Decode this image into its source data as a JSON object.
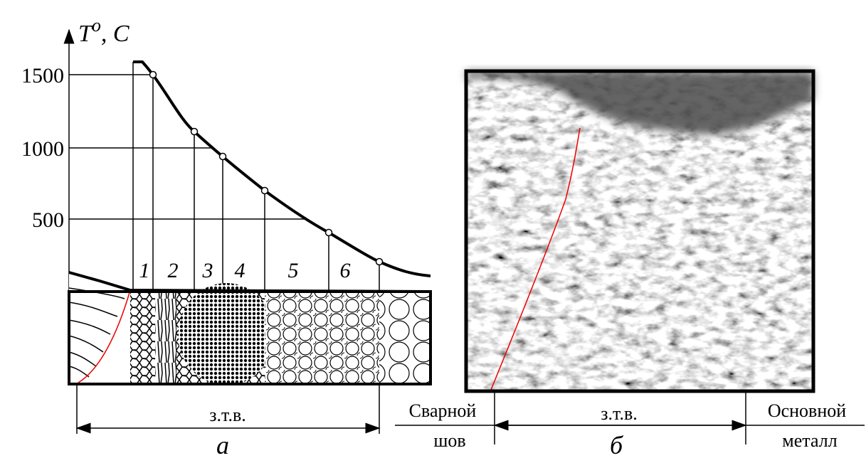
{
  "axis": {
    "symbol": "T",
    "degree": "o",
    "unit": ", C",
    "ticks": [
      "1500",
      "1000",
      "500"
    ]
  },
  "zones": [
    "1",
    "2",
    "3",
    "4",
    "5",
    "6"
  ],
  "panel_a": {
    "dimension": "з.т.в.",
    "caption": "а"
  },
  "panel_b": {
    "left": [
      "Сварной",
      "шов"
    ],
    "dimension": "з.т.в.",
    "right": [
      "Основной",
      "металл"
    ],
    "caption": "б"
  }
}
